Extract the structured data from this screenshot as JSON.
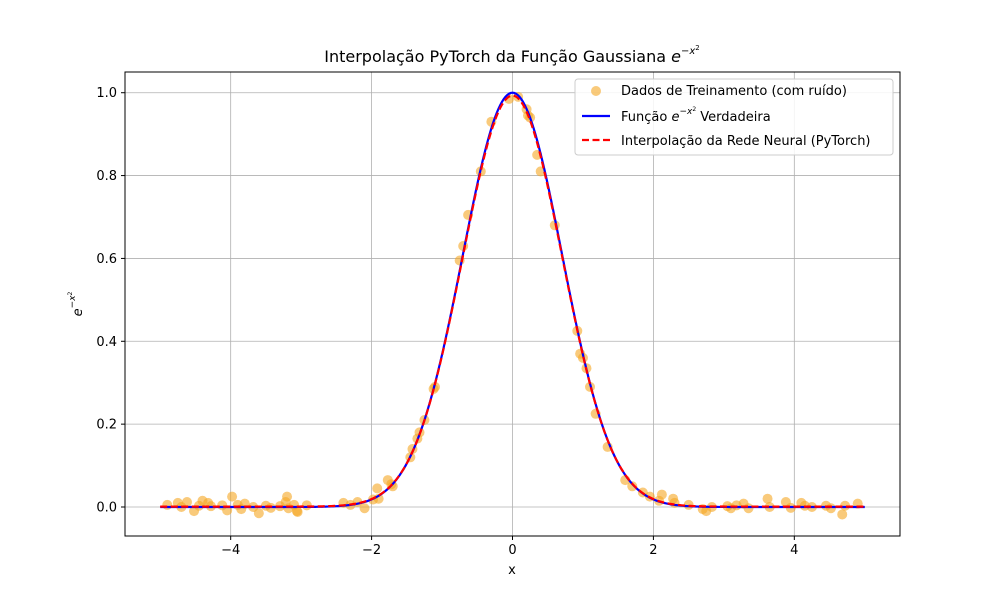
{
  "chart_data": {
    "type": "scatter",
    "title": "Interpolação PyTorch da Função Gaussiana e^{−x²}",
    "title_text": "Interpolação PyTorch da Função Gaussiana ",
    "xlabel": "x",
    "ylabel": "e^{−x²}",
    "xlim": [
      -5.5,
      5.5
    ],
    "ylim": [
      -0.07,
      1.05
    ],
    "xticks": [
      -4,
      -2,
      0,
      2,
      4
    ],
    "xtick_labels": [
      "−4",
      "−2",
      "0",
      "2",
      "4"
    ],
    "yticks": [
      0.0,
      0.2,
      0.4,
      0.6,
      0.8,
      1.0
    ],
    "ytick_labels": [
      "0.0",
      "0.2",
      "0.4",
      "0.6",
      "0.8",
      "1.0"
    ],
    "grid": true,
    "legend_position": "top-right",
    "series": [
      {
        "name": "Dados de Treinamento (com ruído)",
        "kind": "scatter",
        "color": "#f5a623",
        "x": [
          -4.9,
          -4.75,
          -4.7,
          -4.62,
          -4.52,
          -4.45,
          -4.4,
          -4.32,
          -4.28,
          -4.12,
          -4.05,
          -3.98,
          -3.9,
          -3.85,
          -3.8,
          -3.68,
          -3.6,
          -3.5,
          -3.43,
          -3.3,
          -3.22,
          -3.2,
          -3.18,
          -3.1,
          -3.06,
          -3.05,
          -2.92,
          -2.4,
          -2.3,
          -2.2,
          -2.1,
          -1.98,
          -1.92,
          -1.9,
          -1.77,
          -1.72,
          -1.7,
          -1.45,
          -1.42,
          -1.35,
          -1.32,
          -1.25,
          -1.12,
          -1.1,
          -0.75,
          -0.7,
          -0.63,
          -0.45,
          -0.3,
          -0.05,
          0.08,
          0.2,
          0.22,
          0.25,
          0.35,
          0.4,
          0.6,
          0.92,
          0.96,
          1.0,
          1.05,
          1.1,
          1.18,
          1.35,
          1.6,
          1.7,
          1.85,
          1.95,
          2.08,
          2.12,
          2.28,
          2.3,
          2.5,
          2.7,
          2.75,
          2.83,
          3.05,
          3.1,
          3.18,
          3.28,
          3.35,
          3.62,
          3.65,
          3.88,
          3.95,
          4.1,
          4.15,
          4.25,
          4.45,
          4.52,
          4.68,
          4.72,
          4.9
        ],
        "y": [
          0.005,
          0.01,
          0.0,
          0.012,
          -0.01,
          0.003,
          0.015,
          0.01,
          0.002,
          0.004,
          -0.008,
          0.025,
          0.005,
          -0.005,
          0.008,
          0.0,
          -0.015,
          0.003,
          -0.002,
          0.002,
          0.012,
          0.025,
          -0.003,
          0.005,
          -0.01,
          -0.012,
          0.004,
          0.01,
          0.005,
          0.012,
          -0.003,
          0.018,
          0.045,
          0.02,
          0.065,
          0.055,
          0.05,
          0.12,
          0.14,
          0.165,
          0.18,
          0.21,
          0.285,
          0.29,
          0.595,
          0.63,
          0.705,
          0.81,
          0.93,
          0.985,
          0.99,
          0.96,
          0.945,
          0.94,
          0.85,
          0.81,
          0.68,
          0.425,
          0.37,
          0.36,
          0.335,
          0.29,
          0.225,
          0.145,
          0.065,
          0.05,
          0.035,
          0.025,
          0.015,
          0.03,
          0.02,
          0.01,
          0.005,
          -0.005,
          -0.01,
          0.0,
          0.002,
          -0.003,
          0.004,
          0.008,
          -0.003,
          0.02,
          0.0,
          0.012,
          -0.002,
          0.01,
          0.003,
          0.0,
          0.003,
          -0.003,
          -0.018,
          0.003,
          0.008
        ]
      },
      {
        "name": "Função e^{−x²} Verdadeira",
        "name_text": "Função ",
        "name_suffix": " Verdadeira",
        "kind": "line",
        "color": "#0000ff",
        "function": "exp(-x^2)",
        "x_range": [
          -5,
          5
        ]
      },
      {
        "name": "Interpolação da Rede Neural (PyTorch)",
        "kind": "dashed-line",
        "color": "#ff0000",
        "x_range": [
          -5,
          5
        ]
      }
    ]
  }
}
